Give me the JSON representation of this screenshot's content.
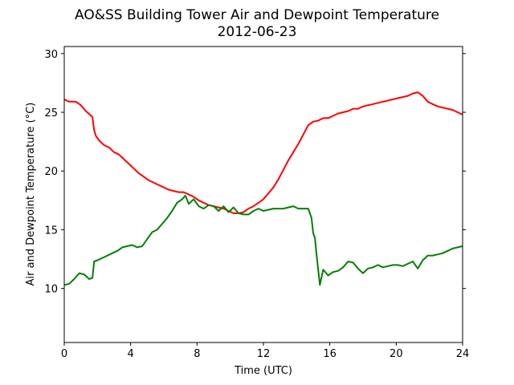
{
  "chart_data": {
    "type": "line",
    "title": "AO&SS Building Tower Air and Dewpoint Temperature",
    "subtitle": "2012-06-23",
    "xlabel": "Time (UTC)",
    "ylabel": "Air and Dewpoint Temperature (°C)",
    "xlim": [
      0,
      24
    ],
    "ylim": [
      5.4,
      30.6
    ],
    "xticks": [
      0,
      4,
      8,
      12,
      16,
      20,
      24
    ],
    "yticks": [
      10,
      15,
      20,
      25,
      30
    ],
    "grid": false,
    "series": [
      {
        "color": "#ff0000",
        "x": [
          0,
          0.3,
          0.7,
          1.0,
          1.3,
          1.7,
          1.8,
          1.9,
          2.1,
          2.4,
          2.7,
          3.0,
          3.3,
          3.6,
          3.9,
          4.2,
          4.5,
          4.8,
          5.1,
          5.4,
          5.7,
          6.0,
          6.3,
          6.6,
          6.9,
          7.2,
          7.5,
          7.8,
          8.1,
          8.4,
          8.7,
          9.0,
          9.3,
          9.6,
          9.9,
          10.2,
          10.5,
          10.8,
          11.1,
          11.4,
          11.7,
          12.0,
          12.3,
          12.6,
          12.9,
          13.2,
          13.5,
          13.8,
          14.1,
          14.4,
          14.7,
          15.0,
          15.3,
          15.6,
          15.9,
          16.2,
          16.5,
          16.8,
          17.1,
          17.4,
          17.7,
          18.0,
          18.3,
          18.6,
          18.9,
          19.2,
          19.5,
          19.8,
          20.1,
          20.4,
          20.7,
          21.0,
          21.3,
          21.6,
          21.9,
          22.2,
          22.5,
          22.8,
          23.1,
          23.4,
          23.7,
          24.0
        ],
        "y": [
          26.1,
          25.9,
          25.9,
          25.6,
          25.1,
          24.6,
          23.5,
          23.0,
          22.6,
          22.2,
          22.0,
          21.6,
          21.4,
          21.0,
          20.6,
          20.2,
          19.8,
          19.5,
          19.2,
          19.0,
          18.8,
          18.6,
          18.4,
          18.3,
          18.2,
          18.2,
          18.0,
          17.8,
          17.5,
          17.3,
          17.1,
          17.0,
          16.9,
          16.8,
          16.6,
          16.4,
          16.4,
          16.5,
          16.8,
          17.0,
          17.3,
          17.6,
          18.1,
          18.6,
          19.3,
          20.1,
          20.9,
          21.6,
          22.3,
          23.1,
          23.9,
          24.2,
          24.3,
          24.5,
          24.5,
          24.7,
          24.9,
          25.0,
          25.1,
          25.3,
          25.3,
          25.5,
          25.6,
          25.7,
          25.8,
          25.9,
          26.0,
          26.1,
          26.2,
          26.3,
          26.4,
          26.6,
          26.7,
          26.4,
          25.9,
          25.7,
          25.5,
          25.4,
          25.3,
          25.2,
          25.0,
          24.8
        ]
      },
      {
        "color": "#008000",
        "x": [
          0,
          0.3,
          0.6,
          0.9,
          1.2,
          1.5,
          1.7,
          1.8,
          2.0,
          2.3,
          2.6,
          2.9,
          3.2,
          3.5,
          3.8,
          4.1,
          4.4,
          4.7,
          5.0,
          5.3,
          5.6,
          5.9,
          6.2,
          6.5,
          6.8,
          7.1,
          7.3,
          7.5,
          7.8,
          8.1,
          8.4,
          8.7,
          9.0,
          9.3,
          9.6,
          9.9,
          10.2,
          10.5,
          10.8,
          11.1,
          11.4,
          11.7,
          12.0,
          12.3,
          12.6,
          12.9,
          13.2,
          13.5,
          13.8,
          14.1,
          14.4,
          14.7,
          14.9,
          15.0,
          15.1,
          15.2,
          15.4,
          15.6,
          15.9,
          16.2,
          16.5,
          16.8,
          17.1,
          17.4,
          17.7,
          18.0,
          18.3,
          18.6,
          18.9,
          19.2,
          19.5,
          19.8,
          20.1,
          20.4,
          20.7,
          21.0,
          21.3,
          21.6,
          21.9,
          22.2,
          22.5,
          22.8,
          23.1,
          23.4,
          23.7,
          24.0
        ],
        "y": [
          10.3,
          10.4,
          10.8,
          11.3,
          11.2,
          10.8,
          10.9,
          12.3,
          12.4,
          12.6,
          12.8,
          13.0,
          13.2,
          13.5,
          13.6,
          13.7,
          13.5,
          13.6,
          14.2,
          14.8,
          15.0,
          15.5,
          16.0,
          16.6,
          17.3,
          17.6,
          17.9,
          17.2,
          17.6,
          17.0,
          16.8,
          17.1,
          17.0,
          16.6,
          17.0,
          16.5,
          16.9,
          16.4,
          16.3,
          16.3,
          16.6,
          16.8,
          16.6,
          16.7,
          16.8,
          16.8,
          16.8,
          16.9,
          17.0,
          16.8,
          16.8,
          16.8,
          16.0,
          14.7,
          14.3,
          12.9,
          10.3,
          11.6,
          11.1,
          11.4,
          11.5,
          11.8,
          12.3,
          12.2,
          11.7,
          11.3,
          11.7,
          11.8,
          12.0,
          11.8,
          11.9,
          12.0,
          12.0,
          11.9,
          12.1,
          12.3,
          11.7,
          12.4,
          12.8,
          12.8,
          12.9,
          13.0,
          13.2,
          13.4,
          13.5,
          13.6
        ]
      }
    ]
  }
}
